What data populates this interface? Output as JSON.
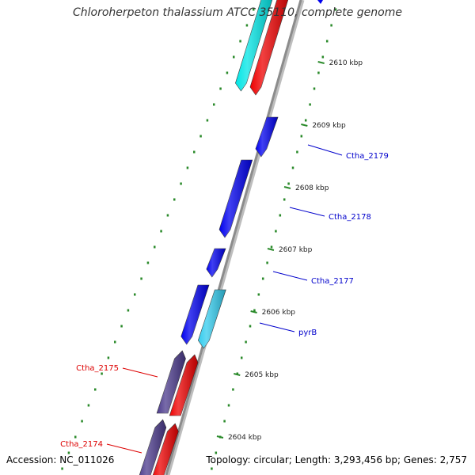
{
  "title": "Chloroherpeton thalassium ATCC 35110, complete genome",
  "accession": "Accession: NC_011026",
  "summary": "Topology: circular; Length: 3,293,456 bp; Genes: 2,757",
  "colors": {
    "backbone": "#8c8c8c",
    "tick": "#2a8a2a",
    "forward_label": "#0000cc",
    "reverse_label": "#dd0000"
  },
  "kbp_ticks": [
    "2610 kbp",
    "2609 kbp",
    "2608 kbp",
    "2607 kbp",
    "2606 kbp",
    "2605 kbp",
    "2604 kbp"
  ],
  "genes": [
    {
      "label": "Ctha_2179",
      "color": "#0000ee",
      "strand": "forward"
    },
    {
      "label": "Ctha_2178",
      "color": "#0000ee",
      "strand": "forward"
    },
    {
      "label": "Ctha_2177",
      "color": "#0000ee",
      "strand": "forward"
    },
    {
      "label": "pyrB",
      "color": "#0000ee",
      "strand": "forward"
    },
    {
      "label": "Ctha_2175",
      "color": "#dd0000",
      "strand": "reverse"
    },
    {
      "label": "Ctha_2174",
      "color": "#dd0000",
      "strand": "reverse"
    }
  ]
}
